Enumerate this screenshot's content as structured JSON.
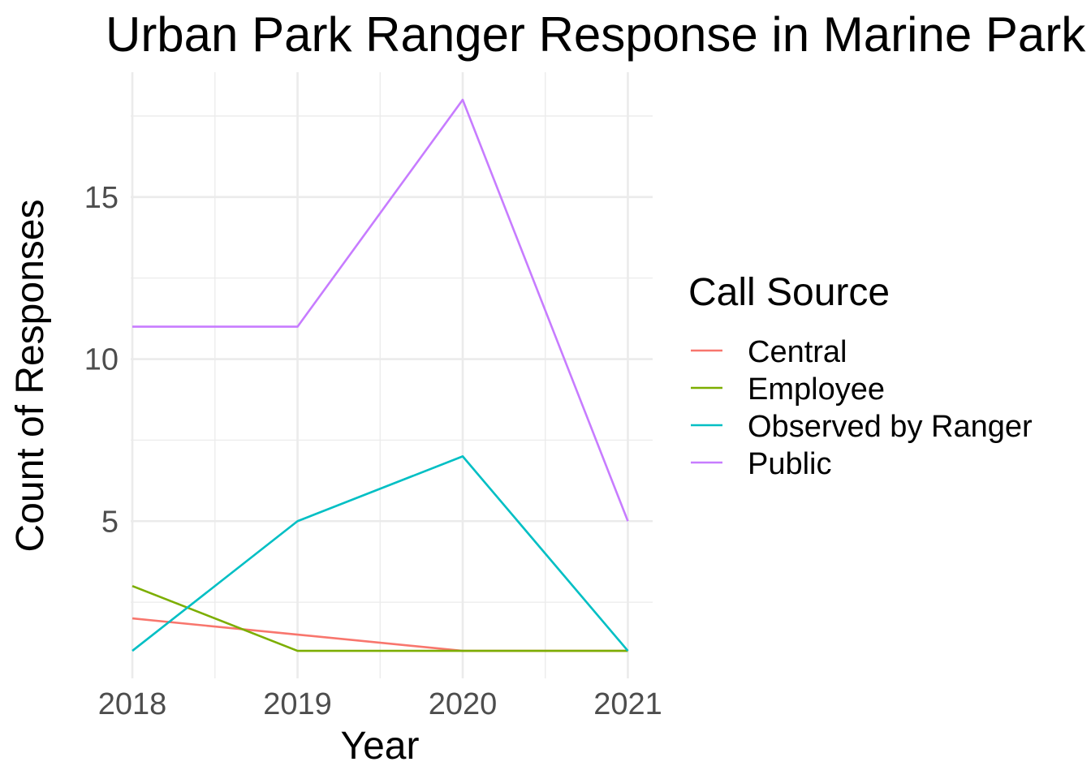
{
  "chart_data": {
    "type": "line",
    "title": "Urban Park Ranger Response in Marine Park",
    "xlabel": "Year",
    "ylabel": "Count of Responses",
    "x": [
      2018,
      2019,
      2020,
      2021
    ],
    "x_ticks": [
      "2018",
      "2019",
      "2020",
      "2021"
    ],
    "y_ticks": [
      "5",
      "10",
      "15"
    ],
    "xlim": [
      2017.99,
      2021.15
    ],
    "ylim": [
      0.15,
      18.85
    ],
    "grid": true,
    "legend": {
      "title": "Call Source",
      "position": "right"
    },
    "series": [
      {
        "name": "Central",
        "color": "#F8766D",
        "values": [
          2,
          1.5,
          1,
          1
        ]
      },
      {
        "name": "Employee",
        "color": "#7CAE00",
        "values": [
          3,
          1,
          1,
          1
        ]
      },
      {
        "name": "Observed by Ranger",
        "color": "#00BFC4",
        "values": [
          1,
          5,
          7,
          1
        ]
      },
      {
        "name": "Public",
        "color": "#C77CFF",
        "values": [
          11,
          11,
          18,
          5
        ]
      }
    ]
  }
}
